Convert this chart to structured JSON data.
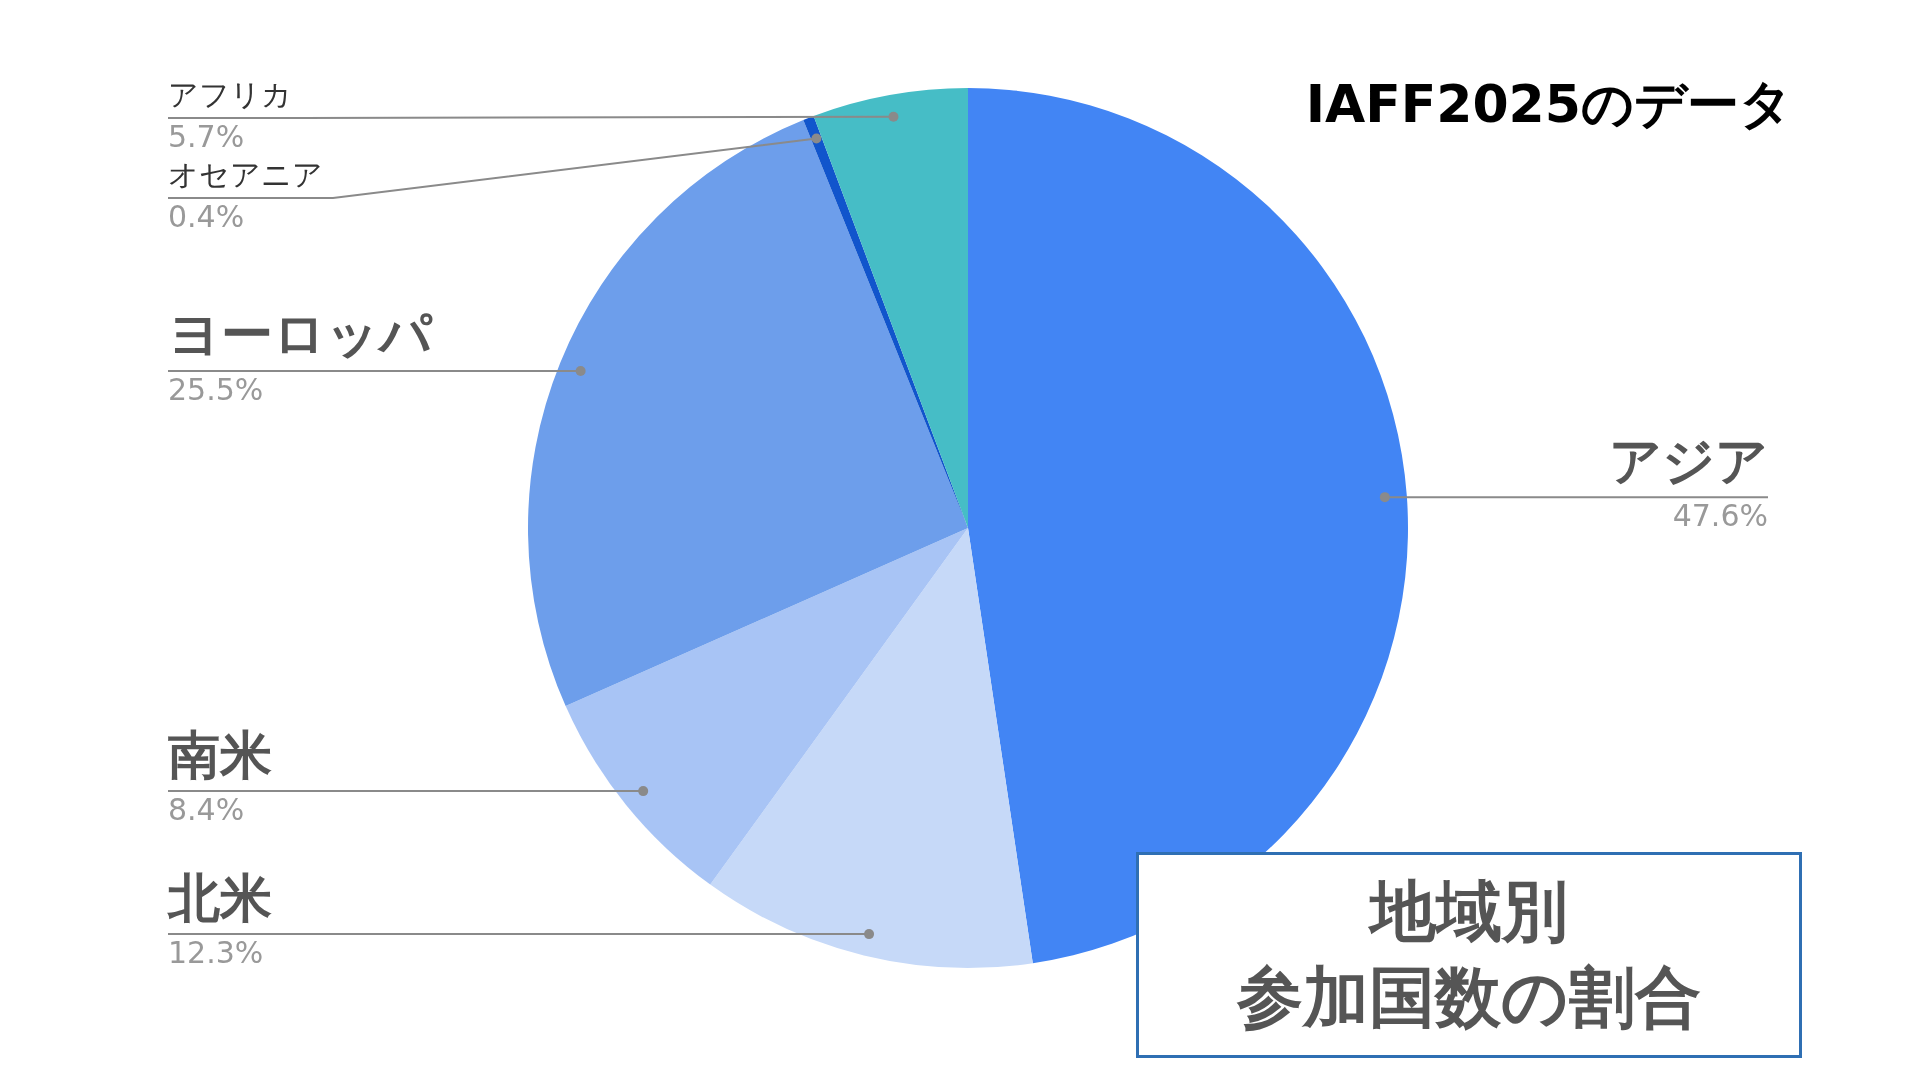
{
  "chart_data": {
    "type": "pie",
    "title": "IAFF2025のデータ",
    "subtitle": "地域別",
    "annotations": [
      "参加国数の割合"
    ],
    "categories": [
      "アジア",
      "北米",
      "南米",
      "ヨーロッパ",
      "オセアニア",
      "アフリカ"
    ],
    "values": [
      47.6,
      12.3,
      8.4,
      25.5,
      0.4,
      5.7
    ],
    "value_labels": [
      "47.6%",
      "12.3%",
      "8.4%",
      "25.5%",
      "0.4%",
      "5.7%"
    ],
    "colors": [
      "#4285f4",
      "#c6d9f8",
      "#a8c4f5",
      "#6d9eeb",
      "#1155cc",
      "#46bdc6"
    ],
    "legend": false
  }
}
